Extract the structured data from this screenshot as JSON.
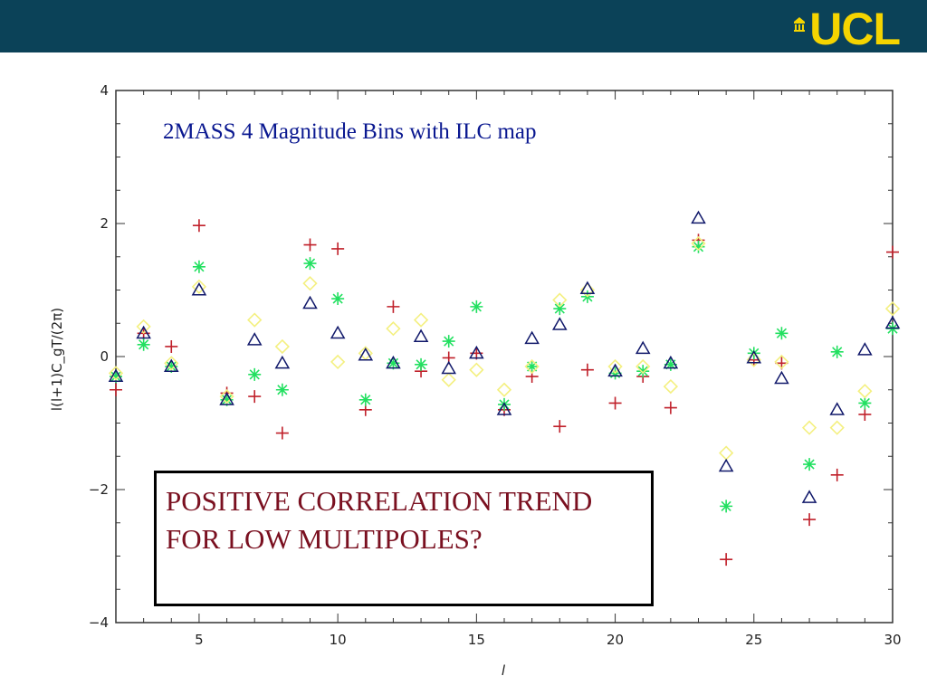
{
  "header": {
    "logo_text": "UCL",
    "bar_color": "#0b4258",
    "logo_color": "#f5d400"
  },
  "callout": {
    "text": "POSITIVE CORRELATION TREND FOR LOW MULTIPOLES?",
    "color": "#7a1020"
  },
  "chart_data": {
    "type": "scatter",
    "title": "2MASS 4 Magnitude Bins with ILC map",
    "xlabel": "l",
    "ylabel": "l(l+1)C_gT/(2π)",
    "xlim": [
      2,
      30
    ],
    "ylim": [
      -4,
      4
    ],
    "xticks": [
      5,
      10,
      15,
      20,
      25,
      30
    ],
    "yticks": [
      -4,
      -2,
      0,
      2,
      4
    ],
    "series": [
      {
        "marker": "plus",
        "color": "#c0202a",
        "points": [
          [
            2,
            -0.5
          ],
          [
            3,
            0.35
          ],
          [
            4,
            0.15
          ],
          [
            5,
            1.97
          ],
          [
            6,
            -0.55
          ],
          [
            7,
            -0.6
          ],
          [
            8,
            -1.15
          ],
          [
            9,
            1.68
          ],
          [
            10,
            1.62
          ],
          [
            11,
            -0.8
          ],
          [
            12,
            0.75
          ],
          [
            13,
            -0.22
          ],
          [
            14,
            -0.02
          ],
          [
            15,
            0.05
          ],
          [
            16,
            -0.8
          ],
          [
            17,
            -0.3
          ],
          [
            18,
            -1.05
          ],
          [
            19,
            -0.2
          ],
          [
            20,
            -0.7
          ],
          [
            21,
            -0.3
          ],
          [
            22,
            -0.77
          ],
          [
            23,
            1.75
          ],
          [
            24,
            -3.05
          ],
          [
            25,
            -0.05
          ],
          [
            26,
            -0.1
          ],
          [
            27,
            -2.45
          ],
          [
            28,
            -1.78
          ],
          [
            29,
            -0.87
          ],
          [
            30,
            1.57
          ]
        ]
      },
      {
        "marker": "star",
        "color": "#22e060",
        "points": [
          [
            2,
            -0.3
          ],
          [
            3,
            0.18
          ],
          [
            4,
            -0.15
          ],
          [
            5,
            1.35
          ],
          [
            6,
            -0.65
          ],
          [
            7,
            -0.27
          ],
          [
            8,
            -0.5
          ],
          [
            9,
            1.4
          ],
          [
            10,
            0.87
          ],
          [
            11,
            -0.65
          ],
          [
            12,
            -0.1
          ],
          [
            13,
            -0.12
          ],
          [
            14,
            0.23
          ],
          [
            15,
            0.75
          ],
          [
            16,
            -0.72
          ],
          [
            17,
            -0.15
          ],
          [
            18,
            0.72
          ],
          [
            19,
            0.9
          ],
          [
            20,
            -0.25
          ],
          [
            21,
            -0.22
          ],
          [
            22,
            -0.12
          ],
          [
            23,
            1.65
          ],
          [
            24,
            -2.25
          ],
          [
            25,
            0.05
          ],
          [
            26,
            0.35
          ],
          [
            27,
            -1.62
          ],
          [
            28,
            0.07
          ],
          [
            29,
            -0.7
          ],
          [
            30,
            0.42
          ]
        ]
      },
      {
        "marker": "diamond",
        "color": "#f4f080",
        "points": [
          [
            2,
            -0.25
          ],
          [
            3,
            0.45
          ],
          [
            4,
            -0.1
          ],
          [
            5,
            1.05
          ],
          [
            6,
            -0.6
          ],
          [
            7,
            0.55
          ],
          [
            8,
            0.15
          ],
          [
            9,
            1.1
          ],
          [
            10,
            -0.08
          ],
          [
            11,
            0.05
          ],
          [
            12,
            0.42
          ],
          [
            13,
            0.55
          ],
          [
            14,
            -0.35
          ],
          [
            15,
            -0.2
          ],
          [
            16,
            -0.5
          ],
          [
            17,
            -0.15
          ],
          [
            18,
            0.85
          ],
          [
            19,
            1.0
          ],
          [
            20,
            -0.15
          ],
          [
            21,
            -0.15
          ],
          [
            22,
            -0.45
          ],
          [
            23,
            1.7
          ],
          [
            24,
            -1.45
          ],
          [
            25,
            -0.05
          ],
          [
            26,
            -0.08
          ],
          [
            27,
            -1.07
          ],
          [
            28,
            -1.07
          ],
          [
            29,
            -0.52
          ],
          [
            30,
            0.72
          ]
        ]
      },
      {
        "marker": "triangle",
        "color": "#10186a",
        "points": [
          [
            2,
            -0.3
          ],
          [
            3,
            0.35
          ],
          [
            4,
            -0.15
          ],
          [
            5,
            1.0
          ],
          [
            6,
            -0.65
          ],
          [
            7,
            0.25
          ],
          [
            8,
            -0.1
          ],
          [
            9,
            0.8
          ],
          [
            10,
            0.35
          ],
          [
            11,
            0.02
          ],
          [
            12,
            -0.1
          ],
          [
            13,
            0.3
          ],
          [
            14,
            -0.18
          ],
          [
            15,
            0.05
          ],
          [
            16,
            -0.8
          ],
          [
            17,
            0.27
          ],
          [
            18,
            0.48
          ],
          [
            19,
            1.02
          ],
          [
            20,
            -0.22
          ],
          [
            21,
            0.12
          ],
          [
            22,
            -0.1
          ],
          [
            23,
            2.08
          ],
          [
            24,
            -1.65
          ],
          [
            25,
            -0.02
          ],
          [
            26,
            -0.33
          ],
          [
            27,
            -2.12
          ],
          [
            28,
            -0.8
          ],
          [
            29,
            0.1
          ],
          [
            30,
            0.5
          ]
        ]
      }
    ]
  }
}
